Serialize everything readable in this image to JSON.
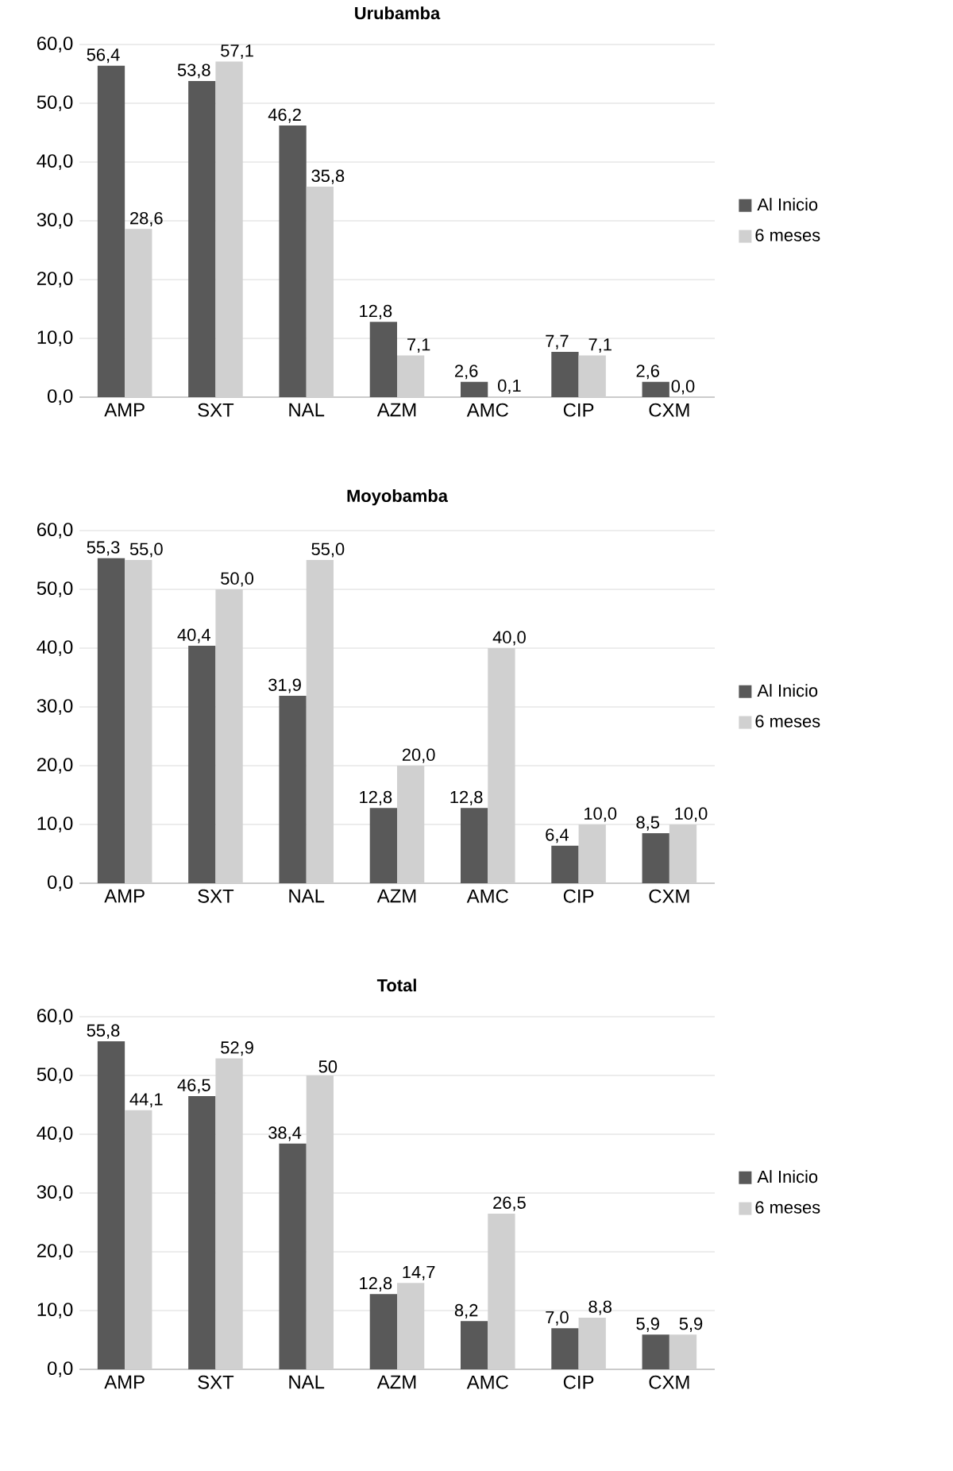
{
  "chart_data": [
    {
      "type": "bar",
      "title": "Urubamba",
      "categories": [
        "AMP",
        "SXT",
        "NAL",
        "AZM",
        "AMC",
        "CIP",
        "CXM"
      ],
      "ylim": [
        0,
        60
      ],
      "yticks": [
        {
          "value": 0,
          "label": "0,0"
        },
        {
          "value": 10,
          "label": "10,0"
        },
        {
          "value": 20,
          "label": "20,0"
        },
        {
          "value": 30,
          "label": "30,0"
        },
        {
          "value": 40,
          "label": "40,0"
        },
        {
          "value": 50,
          "label": "50,0"
        },
        {
          "value": 60,
          "label": "60,0"
        }
      ],
      "grid": "y",
      "legend": "right",
      "series": [
        {
          "name": "Al Inicio",
          "color": "#595959",
          "values": [
            56.4,
            53.8,
            46.2,
            12.8,
            2.6,
            7.7,
            2.6
          ],
          "value_labels": [
            "56,4",
            "53,8",
            "46,2",
            "12,8",
            "2,6",
            "7,7",
            "2,6"
          ]
        },
        {
          "name": "6 meses",
          "color": "#d0d0d0",
          "values": [
            28.6,
            57.1,
            35.8,
            7.1,
            0.1,
            7.1,
            0.0
          ],
          "value_labels": [
            "28,6",
            "57,1",
            "35,8",
            "7,1",
            "0,1",
            "7,1",
            "0,0"
          ]
        }
      ]
    },
    {
      "type": "bar",
      "title": "Moyobamba",
      "categories": [
        "AMP",
        "SXT",
        "NAL",
        "AZM",
        "AMC",
        "CIP",
        "CXM"
      ],
      "ylim": [
        0,
        60
      ],
      "yticks": [
        {
          "value": 0,
          "label": "0,0"
        },
        {
          "value": 10,
          "label": "10,0"
        },
        {
          "value": 20,
          "label": "20,0"
        },
        {
          "value": 30,
          "label": "30,0"
        },
        {
          "value": 40,
          "label": "40,0"
        },
        {
          "value": 50,
          "label": "50,0"
        },
        {
          "value": 60,
          "label": "60,0"
        }
      ],
      "grid": "y",
      "legend": "right",
      "series": [
        {
          "name": "Al Inicio",
          "color": "#595959",
          "values": [
            55.3,
            40.4,
            31.9,
            12.8,
            12.8,
            6.4,
            8.5
          ],
          "value_labels": [
            "55,3",
            "40,4",
            "31,9",
            "12,8",
            "12,8",
            "6,4",
            "8,5"
          ]
        },
        {
          "name": "6 meses",
          "color": "#d0d0d0",
          "values": [
            55.0,
            50.0,
            55.0,
            20.0,
            40.0,
            10.0,
            10.0
          ],
          "value_labels": [
            "55,0",
            "50,0",
            "55,0",
            "20,0",
            "40,0",
            "10,0",
            "10,0"
          ]
        }
      ]
    },
    {
      "type": "bar",
      "title": "Total",
      "categories": [
        "AMP",
        "SXT",
        "NAL",
        "AZM",
        "AMC",
        "CIP",
        "CXM"
      ],
      "ylim": [
        0,
        60
      ],
      "yticks": [
        {
          "value": 0,
          "label": "0,0"
        },
        {
          "value": 10,
          "label": "10,0"
        },
        {
          "value": 20,
          "label": "20,0"
        },
        {
          "value": 30,
          "label": "30,0"
        },
        {
          "value": 40,
          "label": "40,0"
        },
        {
          "value": 50,
          "label": "50,0"
        },
        {
          "value": 60,
          "label": "60,0"
        }
      ],
      "grid": "y",
      "legend": "right",
      "series": [
        {
          "name": "Al Inicio",
          "color": "#595959",
          "values": [
            55.8,
            46.5,
            38.4,
            12.8,
            8.2,
            7.0,
            5.9
          ],
          "value_labels": [
            "55,8",
            "46,5",
            "38,4",
            "12,8",
            "8,2",
            "7,0",
            "5,9"
          ]
        },
        {
          "name": "6 meses",
          "color": "#d0d0d0",
          "values": [
            44.1,
            52.9,
            50,
            14.7,
            26.5,
            8.8,
            5.9
          ],
          "value_labels": [
            "44,1",
            "52,9",
            "50",
            "14,7",
            "26,5",
            "8,8",
            "5,9"
          ]
        }
      ]
    }
  ]
}
